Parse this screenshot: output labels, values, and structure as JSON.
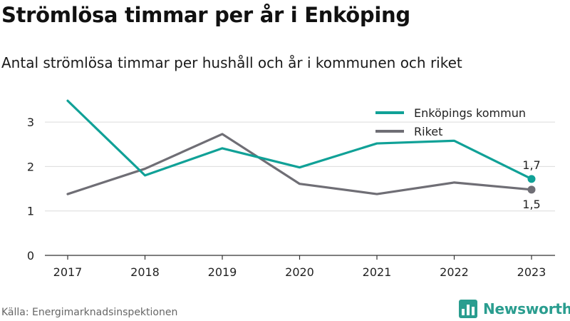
{
  "title": "Strömlösa timmar per år i Enköping",
  "subtitle": "Antal strömlösa timmar per hushåll och år i kommunen och riket",
  "source": "Källa: Energimarknadsinspektionen",
  "brand": {
    "name": "Newsworthy",
    "icon": "bar-chart-logo-icon",
    "color": "#2a9d8f"
  },
  "chart_data": {
    "type": "line",
    "x": [
      "2017",
      "2018",
      "2019",
      "2020",
      "2021",
      "2022",
      "2023"
    ],
    "ylim": [
      0,
      3.5
    ],
    "yticks": [
      0,
      1,
      2,
      3
    ],
    "grid": true,
    "legend_position": "top-right",
    "series": [
      {
        "name": "Enköpings kommun",
        "color": "#10a197",
        "values": [
          3.48,
          1.8,
          2.41,
          1.98,
          2.52,
          2.58,
          1.72
        ],
        "end_label": "1,7"
      },
      {
        "name": "Riket",
        "color": "#6f6e75",
        "values": [
          1.38,
          1.95,
          2.73,
          1.61,
          1.38,
          1.64,
          1.48
        ],
        "end_label": "1,5"
      }
    ]
  }
}
